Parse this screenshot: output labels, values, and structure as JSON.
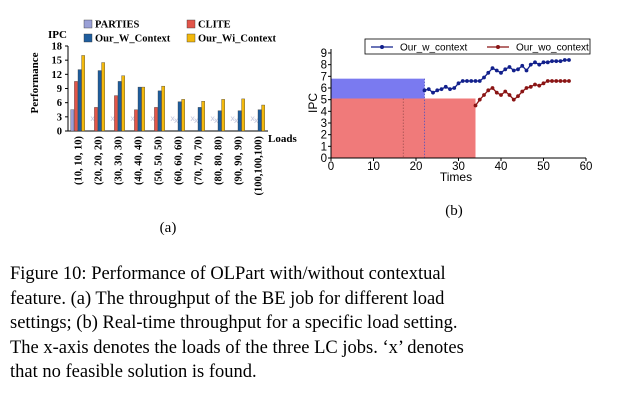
{
  "colors": {
    "parties": "#9aa0d6",
    "clite": "#e2554a",
    "our_w_context": "#1f5e9e",
    "our_wi_context": "#f2b80c",
    "line_w": "#12208c",
    "line_wo": "#8a1414",
    "fill_blue": "#7a7af0",
    "fill_red": "#f07a7a",
    "x_marker": "#c4c6dc"
  },
  "chart_data": [
    {
      "type": "bar",
      "panel_label": "(a)",
      "ylabel": "Performance",
      "y_unit": "IPC",
      "xlabel": "Loads",
      "ylim": [
        0,
        18
      ],
      "yticks": [
        "0",
        "3",
        "6",
        "9",
        "12",
        "15",
        "18"
      ],
      "legend": [
        "PARTIES",
        "CLITE",
        "Our_W_Context",
        "Our_Wi_Context"
      ],
      "legend_position": "top",
      "infeasible_marker": "x",
      "categories": [
        "(10, 10, 10)",
        "(20, 20, 20)",
        "(30, 30, 30)",
        "(40, 40, 40)",
        "(50, 50, 50)",
        "(60, 60, 60)",
        "(70, 70, 70)",
        "(80, 80, 80)",
        "(90, 90, 90)",
        "(100,100,100)"
      ],
      "series": [
        {
          "name": "PARTIES",
          "values": [
            4.5,
            null,
            null,
            null,
            null,
            null,
            null,
            null,
            null,
            null
          ]
        },
        {
          "name": "CLITE",
          "values": [
            10.5,
            5.0,
            7.5,
            4.5,
            5.0,
            null,
            null,
            null,
            null,
            null
          ]
        },
        {
          "name": "Our_W_Context",
          "values": [
            13.0,
            12.8,
            10.5,
            9.3,
            8.5,
            6.2,
            5.0,
            4.3,
            4.3,
            4.5
          ]
        },
        {
          "name": "Our_Wi_Context",
          "values": [
            16.0,
            14.5,
            11.7,
            9.3,
            9.5,
            6.7,
            6.3,
            6.7,
            6.8,
            5.5
          ]
        }
      ]
    },
    {
      "type": "line",
      "panel_label": "(b)",
      "xlabel": "Times",
      "ylabel": "IPC",
      "xlim": [
        0,
        60
      ],
      "ylim": [
        0,
        9
      ],
      "xticks": [
        "0",
        "10",
        "20",
        "30",
        "40",
        "50",
        "60"
      ],
      "yticks": [
        "0",
        "1",
        "2",
        "3",
        "4",
        "5",
        "6",
        "7",
        "8",
        "9"
      ],
      "legend_position": "top",
      "series": [
        {
          "name": "Our_w_context",
          "x": [
            22,
            23,
            24,
            25,
            26,
            27,
            28,
            29,
            30,
            31,
            32,
            33,
            34,
            35,
            36,
            37,
            38,
            39,
            40,
            41,
            42,
            43,
            44,
            45,
            46,
            47,
            48,
            49,
            50,
            51,
            52,
            53,
            54,
            55,
            56
          ],
          "y": [
            5.8,
            5.9,
            5.6,
            5.8,
            5.9,
            6.1,
            5.9,
            6.0,
            6.4,
            6.6,
            6.6,
            6.6,
            6.6,
            6.6,
            6.9,
            7.3,
            7.7,
            7.5,
            7.3,
            7.6,
            7.8,
            7.5,
            7.6,
            7.9,
            7.5,
            8.0,
            8.2,
            8.0,
            8.2,
            8.2,
            8.3,
            8.3,
            8.3,
            8.4,
            8.4
          ]
        },
        {
          "name": "Our_wo_context",
          "x": [
            34,
            35,
            36,
            37,
            38,
            39,
            40,
            41,
            42,
            43,
            44,
            45,
            46,
            47,
            48,
            49,
            50,
            51,
            52,
            53,
            54,
            55,
            56
          ],
          "y": [
            4.5,
            5.0,
            5.4,
            5.8,
            6.0,
            5.6,
            5.4,
            5.7,
            5.4,
            5.0,
            5.3,
            5.7,
            6.0,
            6.1,
            6.3,
            6.2,
            6.4,
            6.6,
            6.6,
            6.6,
            6.6,
            6.6,
            6.6
          ]
        }
      ],
      "shaded_regions": [
        {
          "x": [
            0,
            22
          ],
          "y": [
            0,
            6.8
          ],
          "color": "blue"
        },
        {
          "x": [
            0,
            34
          ],
          "y": [
            0,
            5.1
          ],
          "color": "red"
        }
      ]
    }
  ],
  "caption": {
    "lines": [
      "Figure 10: Performance of OLPart with/without contextual",
      "feature. (a) The throughput of the BE job for different load",
      "settings; (b) Real-time throughput for a specific load setting.",
      "The x-axis denotes the loads of the three LC jobs. ‘x’ denotes",
      "that no feasible solution is found."
    ]
  }
}
